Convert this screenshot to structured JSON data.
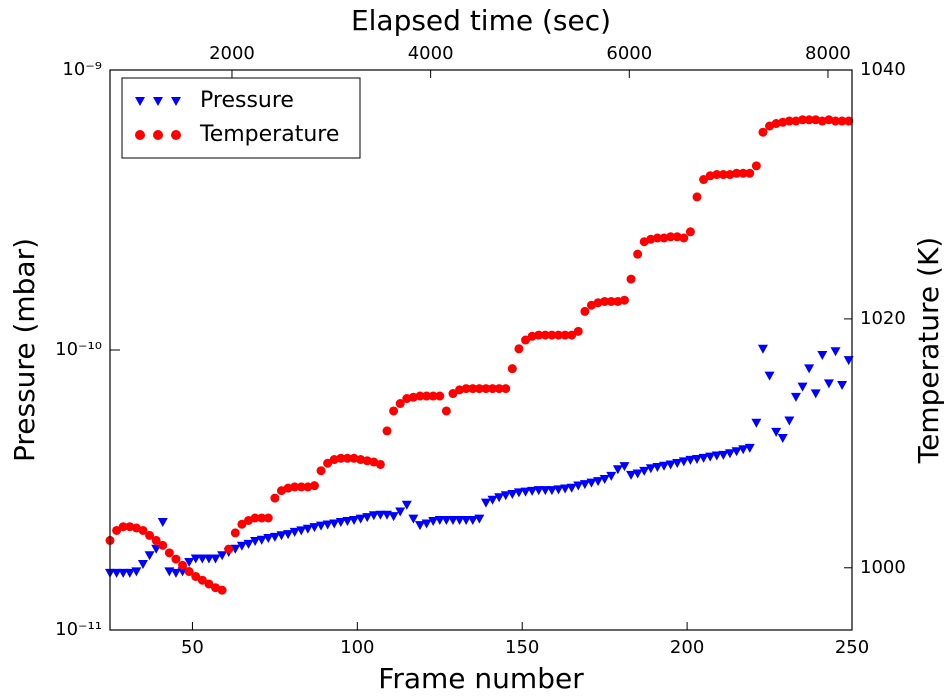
{
  "chart_data": {
    "type": "scatter",
    "x2label": "Elapsed time (sec)",
    "xlabel": "Frame number",
    "ylabel": "Pressure (mbar)",
    "y2label": "Temperature (K)",
    "xlim": [
      25,
      250
    ],
    "xticks": [
      50,
      100,
      150,
      200,
      250
    ],
    "x2lim": [
      772,
      8242
    ],
    "x2ticks": [
      2000,
      4000,
      6000,
      8000
    ],
    "ylim": [
      1e-11,
      1e-09
    ],
    "ylog": true,
    "yticks": [
      {
        "value": 1e-11,
        "label": "10⁻¹¹"
      },
      {
        "value": 1e-10,
        "label": "10⁻¹⁰"
      },
      {
        "value": 1e-09,
        "label": "10⁻⁹"
      }
    ],
    "y2lim": [
      995,
      1040
    ],
    "y2ticks": [
      1000,
      1020,
      1040
    ],
    "legend": "upper left",
    "x": [
      25,
      27,
      29,
      31,
      33,
      35,
      37,
      39,
      41,
      43,
      45,
      47,
      49,
      51,
      53,
      55,
      57,
      59,
      61,
      63,
      65,
      67,
      69,
      71,
      73,
      75,
      77,
      79,
      81,
      83,
      85,
      87,
      89,
      91,
      93,
      95,
      97,
      99,
      101,
      103,
      105,
      107,
      109,
      111,
      113,
      115,
      117,
      119,
      121,
      123,
      125,
      127,
      129,
      131,
      133,
      135,
      137,
      139,
      141,
      143,
      145,
      147,
      149,
      151,
      153,
      155,
      157,
      159,
      161,
      163,
      165,
      167,
      169,
      171,
      173,
      175,
      177,
      179,
      181,
      183,
      185,
      187,
      189,
      191,
      193,
      195,
      197,
      199,
      201,
      203,
      205,
      207,
      209,
      211,
      213,
      215,
      217,
      219,
      221,
      223,
      225,
      227,
      229,
      231,
      233,
      235,
      237,
      239,
      241,
      243,
      245,
      247,
      249
    ],
    "series": [
      {
        "name": "Pressure",
        "color": "#0000ff",
        "marker": "triangle",
        "values": [
          1.6e-11,
          1.6e-11,
          1.6e-11,
          1.6e-11,
          1.62e-11,
          1.72e-11,
          1.85e-11,
          1.95e-11,
          2.43e-11,
          1.62e-11,
          1.6e-11,
          1.62e-11,
          1.75e-11,
          1.8e-11,
          1.8e-11,
          1.8e-11,
          1.8e-11,
          1.85e-11,
          1.9e-11,
          1.95e-11,
          2e-11,
          2.03e-11,
          2.08e-11,
          2.1e-11,
          2.13e-11,
          2.15e-11,
          2.18e-11,
          2.2e-11,
          2.24e-11,
          2.27e-11,
          2.3e-11,
          2.33e-11,
          2.36e-11,
          2.38e-11,
          2.4e-11,
          2.43e-11,
          2.45e-11,
          2.47e-11,
          2.5e-11,
          2.53e-11,
          2.57e-11,
          2.58e-11,
          2.58e-11,
          2.55e-11,
          2.65e-11,
          2.8e-11,
          2.5e-11,
          2.37e-11,
          2.4e-11,
          2.45e-11,
          2.47e-11,
          2.47e-11,
          2.47e-11,
          2.47e-11,
          2.47e-11,
          2.47e-11,
          2.5e-11,
          2.85e-11,
          2.92e-11,
          2.98e-11,
          3.03e-11,
          3.06e-11,
          3.1e-11,
          3.12e-11,
          3.14e-11,
          3.16e-11,
          3.16e-11,
          3.16e-11,
          3.18e-11,
          3.2e-11,
          3.22e-11,
          3.28e-11,
          3.32e-11,
          3.36e-11,
          3.4e-11,
          3.46e-11,
          3.55e-11,
          3.75e-11,
          3.85e-11,
          3.58e-11,
          3.62e-11,
          3.7e-11,
          3.78e-11,
          3.82e-11,
          3.86e-11,
          3.9e-11,
          3.95e-11,
          4e-11,
          4.05e-11,
          4.08e-11,
          4.12e-11,
          4.16e-11,
          4.2e-11,
          4.22e-11,
          4.28e-11,
          4.35e-11,
          4.42e-11,
          4.47e-11,
          5.5e-11,
          1.01e-10,
          8.1e-11,
          5.1e-11,
          4.85e-11,
          5.6e-11,
          6.8e-11,
          7.4e-11,
          8.6e-11,
          7e-11,
          9.6e-11,
          7.6e-11,
          9.9e-11,
          7.5e-11,
          9.2e-11
        ]
      },
      {
        "name": "Temperature",
        "color": "#ff0000",
        "marker": "circle",
        "axis": "y2",
        "values": [
          1002.2,
          1003.0,
          1003.3,
          1003.3,
          1003.2,
          1003.0,
          1002.6,
          1002.2,
          1001.8,
          1001.2,
          1000.7,
          1000.2,
          999.7,
          999.3,
          999.0,
          998.7,
          998.4,
          998.2,
          1001.5,
          1002.8,
          1003.5,
          1003.8,
          1004.0,
          1004.0,
          1004.0,
          1005.6,
          1006.2,
          1006.4,
          1006.5,
          1006.5,
          1006.5,
          1006.6,
          1007.8,
          1008.4,
          1008.7,
          1008.8,
          1008.8,
          1008.8,
          1008.7,
          1008.6,
          1008.5,
          1008.3,
          1011.0,
          1012.6,
          1013.2,
          1013.6,
          1013.7,
          1013.8,
          1013.8,
          1013.8,
          1013.8,
          1012.6,
          1014.0,
          1014.3,
          1014.4,
          1014.4,
          1014.4,
          1014.4,
          1014.4,
          1014.4,
          1014.4,
          1016.0,
          1017.6,
          1018.3,
          1018.6,
          1018.7,
          1018.7,
          1018.7,
          1018.7,
          1018.7,
          1018.7,
          1019.0,
          1020.6,
          1021.1,
          1021.3,
          1021.4,
          1021.4,
          1021.4,
          1021.5,
          1023.2,
          1025.2,
          1026.2,
          1026.4,
          1026.5,
          1026.5,
          1026.6,
          1026.6,
          1026.5,
          1027.0,
          1029.8,
          1031.2,
          1031.5,
          1031.6,
          1031.6,
          1031.6,
          1031.7,
          1031.7,
          1031.7,
          1032.3,
          1035.0,
          1035.5,
          1035.7,
          1035.8,
          1035.9,
          1035.9,
          1036.0,
          1036.0,
          1036.0,
          1035.9,
          1036.0,
          1035.9,
          1035.9,
          1035.9
        ]
      }
    ]
  }
}
